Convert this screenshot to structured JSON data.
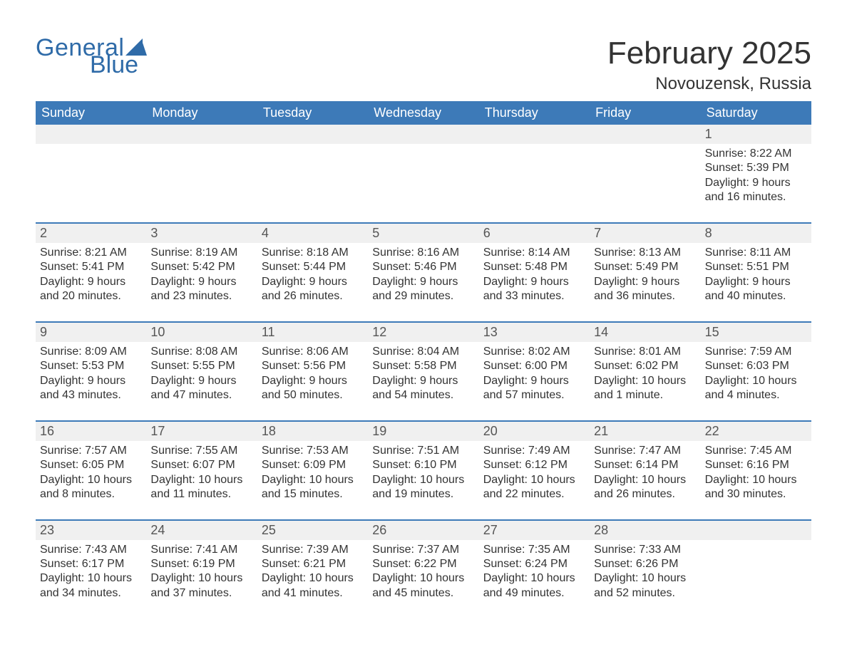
{
  "logo": {
    "text1": "General",
    "text2": "Blue",
    "color": "#2f6ba8"
  },
  "title": "February 2025",
  "location": "Novouzensk, Russia",
  "colors": {
    "header_bg": "#3d7ab8",
    "header_text": "#ffffff",
    "daynum_bg": "#f0f0f0",
    "border_top": "#3d7ab8",
    "body_text": "#333333",
    "page_bg": "#ffffff"
  },
  "day_headers": [
    "Sunday",
    "Monday",
    "Tuesday",
    "Wednesday",
    "Thursday",
    "Friday",
    "Saturday"
  ],
  "weeks": [
    [
      {
        "num": "",
        "lines": []
      },
      {
        "num": "",
        "lines": []
      },
      {
        "num": "",
        "lines": []
      },
      {
        "num": "",
        "lines": []
      },
      {
        "num": "",
        "lines": []
      },
      {
        "num": "",
        "lines": []
      },
      {
        "num": "1",
        "lines": [
          "Sunrise: 8:22 AM",
          "Sunset: 5:39 PM",
          "Daylight: 9 hours",
          "and 16 minutes."
        ]
      }
    ],
    [
      {
        "num": "2",
        "lines": [
          "Sunrise: 8:21 AM",
          "Sunset: 5:41 PM",
          "Daylight: 9 hours",
          "and 20 minutes."
        ]
      },
      {
        "num": "3",
        "lines": [
          "Sunrise: 8:19 AM",
          "Sunset: 5:42 PM",
          "Daylight: 9 hours",
          "and 23 minutes."
        ]
      },
      {
        "num": "4",
        "lines": [
          "Sunrise: 8:18 AM",
          "Sunset: 5:44 PM",
          "Daylight: 9 hours",
          "and 26 minutes."
        ]
      },
      {
        "num": "5",
        "lines": [
          "Sunrise: 8:16 AM",
          "Sunset: 5:46 PM",
          "Daylight: 9 hours",
          "and 29 minutes."
        ]
      },
      {
        "num": "6",
        "lines": [
          "Sunrise: 8:14 AM",
          "Sunset: 5:48 PM",
          "Daylight: 9 hours",
          "and 33 minutes."
        ]
      },
      {
        "num": "7",
        "lines": [
          "Sunrise: 8:13 AM",
          "Sunset: 5:49 PM",
          "Daylight: 9 hours",
          "and 36 minutes."
        ]
      },
      {
        "num": "8",
        "lines": [
          "Sunrise: 8:11 AM",
          "Sunset: 5:51 PM",
          "Daylight: 9 hours",
          "and 40 minutes."
        ]
      }
    ],
    [
      {
        "num": "9",
        "lines": [
          "Sunrise: 8:09 AM",
          "Sunset: 5:53 PM",
          "Daylight: 9 hours",
          "and 43 minutes."
        ]
      },
      {
        "num": "10",
        "lines": [
          "Sunrise: 8:08 AM",
          "Sunset: 5:55 PM",
          "Daylight: 9 hours",
          "and 47 minutes."
        ]
      },
      {
        "num": "11",
        "lines": [
          "Sunrise: 8:06 AM",
          "Sunset: 5:56 PM",
          "Daylight: 9 hours",
          "and 50 minutes."
        ]
      },
      {
        "num": "12",
        "lines": [
          "Sunrise: 8:04 AM",
          "Sunset: 5:58 PM",
          "Daylight: 9 hours",
          "and 54 minutes."
        ]
      },
      {
        "num": "13",
        "lines": [
          "Sunrise: 8:02 AM",
          "Sunset: 6:00 PM",
          "Daylight: 9 hours",
          "and 57 minutes."
        ]
      },
      {
        "num": "14",
        "lines": [
          "Sunrise: 8:01 AM",
          "Sunset: 6:02 PM",
          "Daylight: 10 hours",
          "and 1 minute."
        ]
      },
      {
        "num": "15",
        "lines": [
          "Sunrise: 7:59 AM",
          "Sunset: 6:03 PM",
          "Daylight: 10 hours",
          "and 4 minutes."
        ]
      }
    ],
    [
      {
        "num": "16",
        "lines": [
          "Sunrise: 7:57 AM",
          "Sunset: 6:05 PM",
          "Daylight: 10 hours",
          "and 8 minutes."
        ]
      },
      {
        "num": "17",
        "lines": [
          "Sunrise: 7:55 AM",
          "Sunset: 6:07 PM",
          "Daylight: 10 hours",
          "and 11 minutes."
        ]
      },
      {
        "num": "18",
        "lines": [
          "Sunrise: 7:53 AM",
          "Sunset: 6:09 PM",
          "Daylight: 10 hours",
          "and 15 minutes."
        ]
      },
      {
        "num": "19",
        "lines": [
          "Sunrise: 7:51 AM",
          "Sunset: 6:10 PM",
          "Daylight: 10 hours",
          "and 19 minutes."
        ]
      },
      {
        "num": "20",
        "lines": [
          "Sunrise: 7:49 AM",
          "Sunset: 6:12 PM",
          "Daylight: 10 hours",
          "and 22 minutes."
        ]
      },
      {
        "num": "21",
        "lines": [
          "Sunrise: 7:47 AM",
          "Sunset: 6:14 PM",
          "Daylight: 10 hours",
          "and 26 minutes."
        ]
      },
      {
        "num": "22",
        "lines": [
          "Sunrise: 7:45 AM",
          "Sunset: 6:16 PM",
          "Daylight: 10 hours",
          "and 30 minutes."
        ]
      }
    ],
    [
      {
        "num": "23",
        "lines": [
          "Sunrise: 7:43 AM",
          "Sunset: 6:17 PM",
          "Daylight: 10 hours",
          "and 34 minutes."
        ]
      },
      {
        "num": "24",
        "lines": [
          "Sunrise: 7:41 AM",
          "Sunset: 6:19 PM",
          "Daylight: 10 hours",
          "and 37 minutes."
        ]
      },
      {
        "num": "25",
        "lines": [
          "Sunrise: 7:39 AM",
          "Sunset: 6:21 PM",
          "Daylight: 10 hours",
          "and 41 minutes."
        ]
      },
      {
        "num": "26",
        "lines": [
          "Sunrise: 7:37 AM",
          "Sunset: 6:22 PM",
          "Daylight: 10 hours",
          "and 45 minutes."
        ]
      },
      {
        "num": "27",
        "lines": [
          "Sunrise: 7:35 AM",
          "Sunset: 6:24 PM",
          "Daylight: 10 hours",
          "and 49 minutes."
        ]
      },
      {
        "num": "28",
        "lines": [
          "Sunrise: 7:33 AM",
          "Sunset: 6:26 PM",
          "Daylight: 10 hours",
          "and 52 minutes."
        ]
      },
      {
        "num": "",
        "lines": []
      }
    ]
  ]
}
